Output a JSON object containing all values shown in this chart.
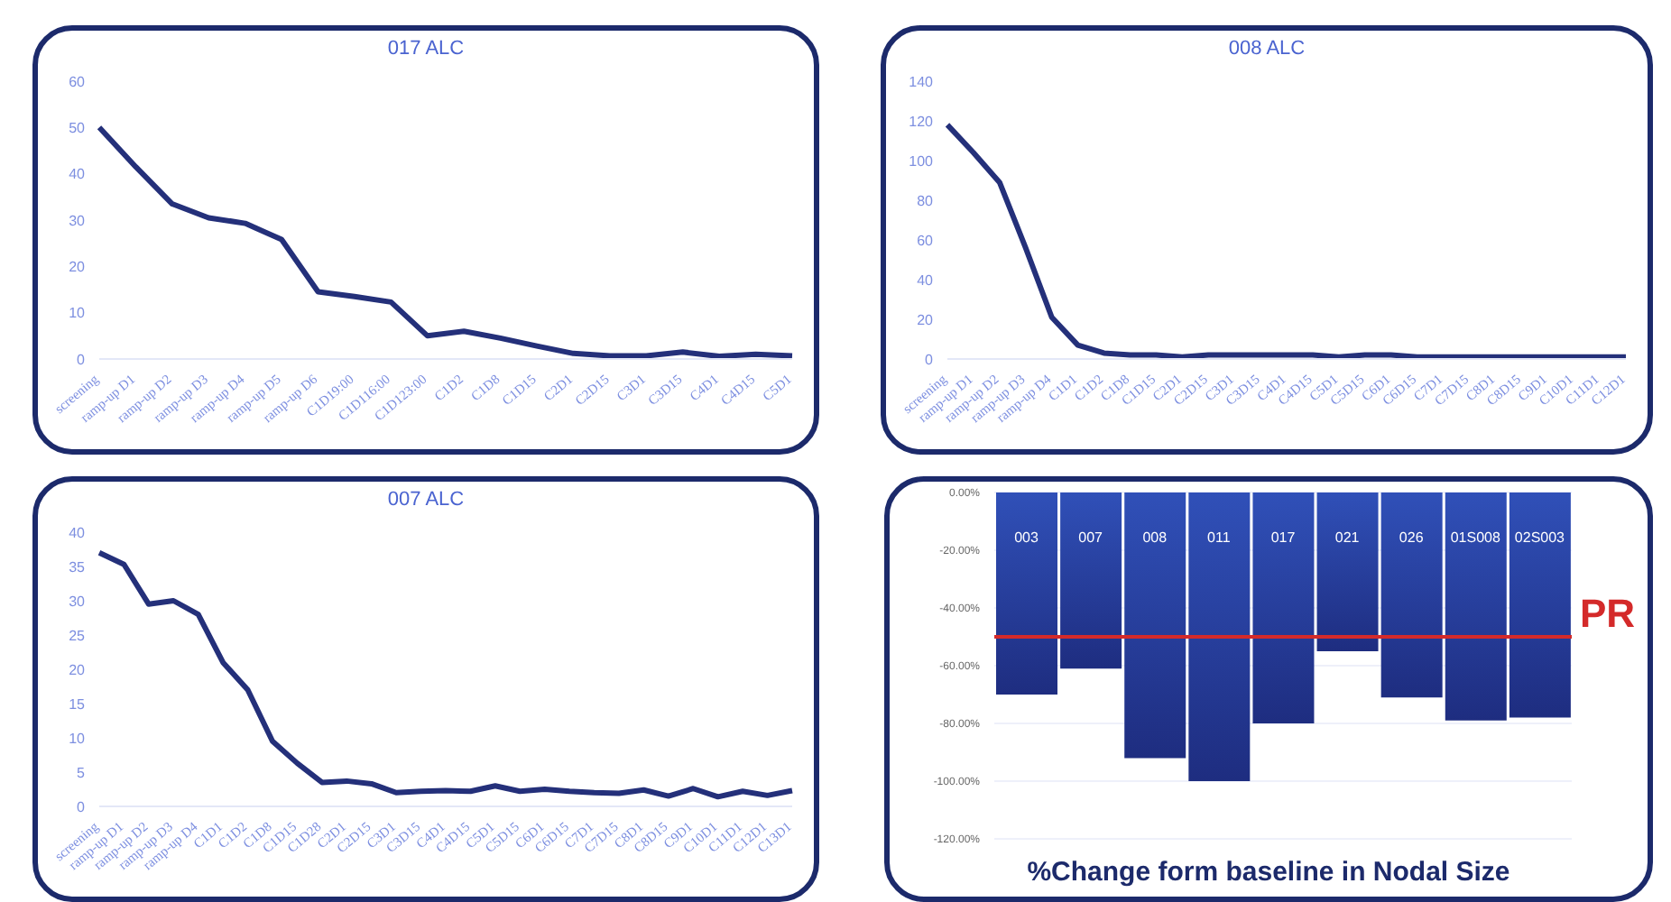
{
  "chart_data": [
    {
      "type": "line",
      "title": "017 ALC",
      "categories": [
        "screening",
        "ramp-up D1",
        "ramp-up D2",
        "ramp-up D3",
        "ramp-up D4",
        "ramp-up D5",
        "ramp-up D6",
        "C1D19:00",
        "C1D116:00",
        "C1D123:00",
        "C1D2",
        "C1D8",
        "C1D15",
        "C2D1",
        "C2D15",
        "C3D1",
        "C3D15",
        "C4D1",
        "C4D15",
        "C5D1"
      ],
      "series": [
        {
          "color": "#24307a",
          "values": [
            50,
            41.5,
            33.5,
            30.5,
            29.3,
            25.8,
            14.5,
            13.5,
            12.3,
            5,
            6,
            4.5,
            2.8,
            1.2,
            0.7,
            0.7,
            1.5,
            0.6,
            1,
            0.7
          ]
        }
      ],
      "ylim": [
        0,
        60
      ],
      "yticks": [
        0,
        10,
        20,
        30,
        40,
        50,
        60
      ],
      "marker": "none",
      "line_style": "solid"
    },
    {
      "type": "line",
      "title": "008 ALC",
      "categories": [
        "screening",
        "ramp-up D1",
        "ramp-up D2",
        "ramp-up D3",
        "ramp-up D4",
        "C1D1",
        "C1D2",
        "C1D8",
        "C1D15",
        "C2D1",
        "C2D15",
        "C3D1",
        "C3D15",
        "C4D1",
        "C4D15",
        "C5D1",
        "C5D15",
        "C6D1",
        "C6D15",
        "C7D1",
        "C7D15",
        "C8D1",
        "C8D15",
        "C9D1",
        "C10D1",
        "C11D1",
        "C12D1"
      ],
      "series": [
        {
          "color": "#24307a",
          "values": [
            118,
            104,
            89,
            56,
            21,
            7,
            3,
            2,
            2,
            1,
            2,
            2,
            2,
            2,
            2,
            1,
            2,
            2,
            1,
            1,
            1,
            1,
            1,
            1,
            1,
            1,
            1
          ]
        }
      ],
      "ylim": [
        0,
        140
      ],
      "yticks": [
        0,
        20,
        40,
        60,
        80,
        100,
        120,
        140
      ],
      "marker": "none",
      "line_style": "solid"
    },
    {
      "type": "line",
      "title": "007 ALC",
      "categories": [
        "screening",
        "ramp-up D1",
        "ramp-up D2",
        "ramp-up D3",
        "ramp-up D4",
        "C1D1",
        "C1D2",
        "C1D8",
        "C1D15",
        "C1D28",
        "C2D1",
        "C2D15",
        "C3D1",
        "C3D15",
        "C4D1",
        "C4D15",
        "C5D1",
        "C5D15",
        "C6D1",
        "C6D15",
        "C7D1",
        "C7D15",
        "C8D1",
        "C8D15",
        "C9D1",
        "C10D1",
        "C11D1",
        "C12D1",
        "C13D1"
      ],
      "series": [
        {
          "color": "#24307a",
          "values": [
            37,
            35.3,
            29.5,
            30,
            28,
            21,
            17,
            9.5,
            6.3,
            3.5,
            3.7,
            3.3,
            2,
            2.2,
            2.3,
            2.2,
            3,
            2.2,
            2.5,
            2.2,
            2,
            1.9,
            2.4,
            1.5,
            2.6,
            1.4,
            2.2,
            1.6,
            2.3
          ]
        }
      ],
      "ylim": [
        0,
        40
      ],
      "yticks": [
        0,
        5,
        10,
        15,
        20,
        25,
        30,
        35,
        40
      ],
      "marker": "none",
      "line_style": "solid"
    },
    {
      "type": "bar",
      "title": "%Change form baseline in Nodal Size",
      "categories": [
        "003",
        "007",
        "008",
        "011",
        "017",
        "021",
        "026",
        "01S008",
        "02S003"
      ],
      "series": [
        {
          "color": "#3050b8",
          "values": [
            -70,
            -61,
            -92,
            -100,
            -80,
            -55,
            -71,
            -79,
            -78
          ]
        }
      ],
      "ylim": [
        -120,
        0
      ],
      "yticks": [
        {
          "value": 0,
          "label": "0.00%"
        },
        {
          "value": -20,
          "label": "-20.00%"
        },
        {
          "value": -40,
          "label": "-40.00%"
        },
        {
          "value": -60,
          "label": "-60.00%"
        },
        {
          "value": -80,
          "label": "-80.00%"
        },
        {
          "value": -100,
          "label": "-100.00%"
        },
        {
          "value": -120,
          "label": "-120.00%"
        }
      ],
      "grid": "y",
      "ref_lines": [
        {
          "axis": "y",
          "value": -50,
          "label": "PR",
          "color": "#d42a2a"
        }
      ]
    }
  ]
}
